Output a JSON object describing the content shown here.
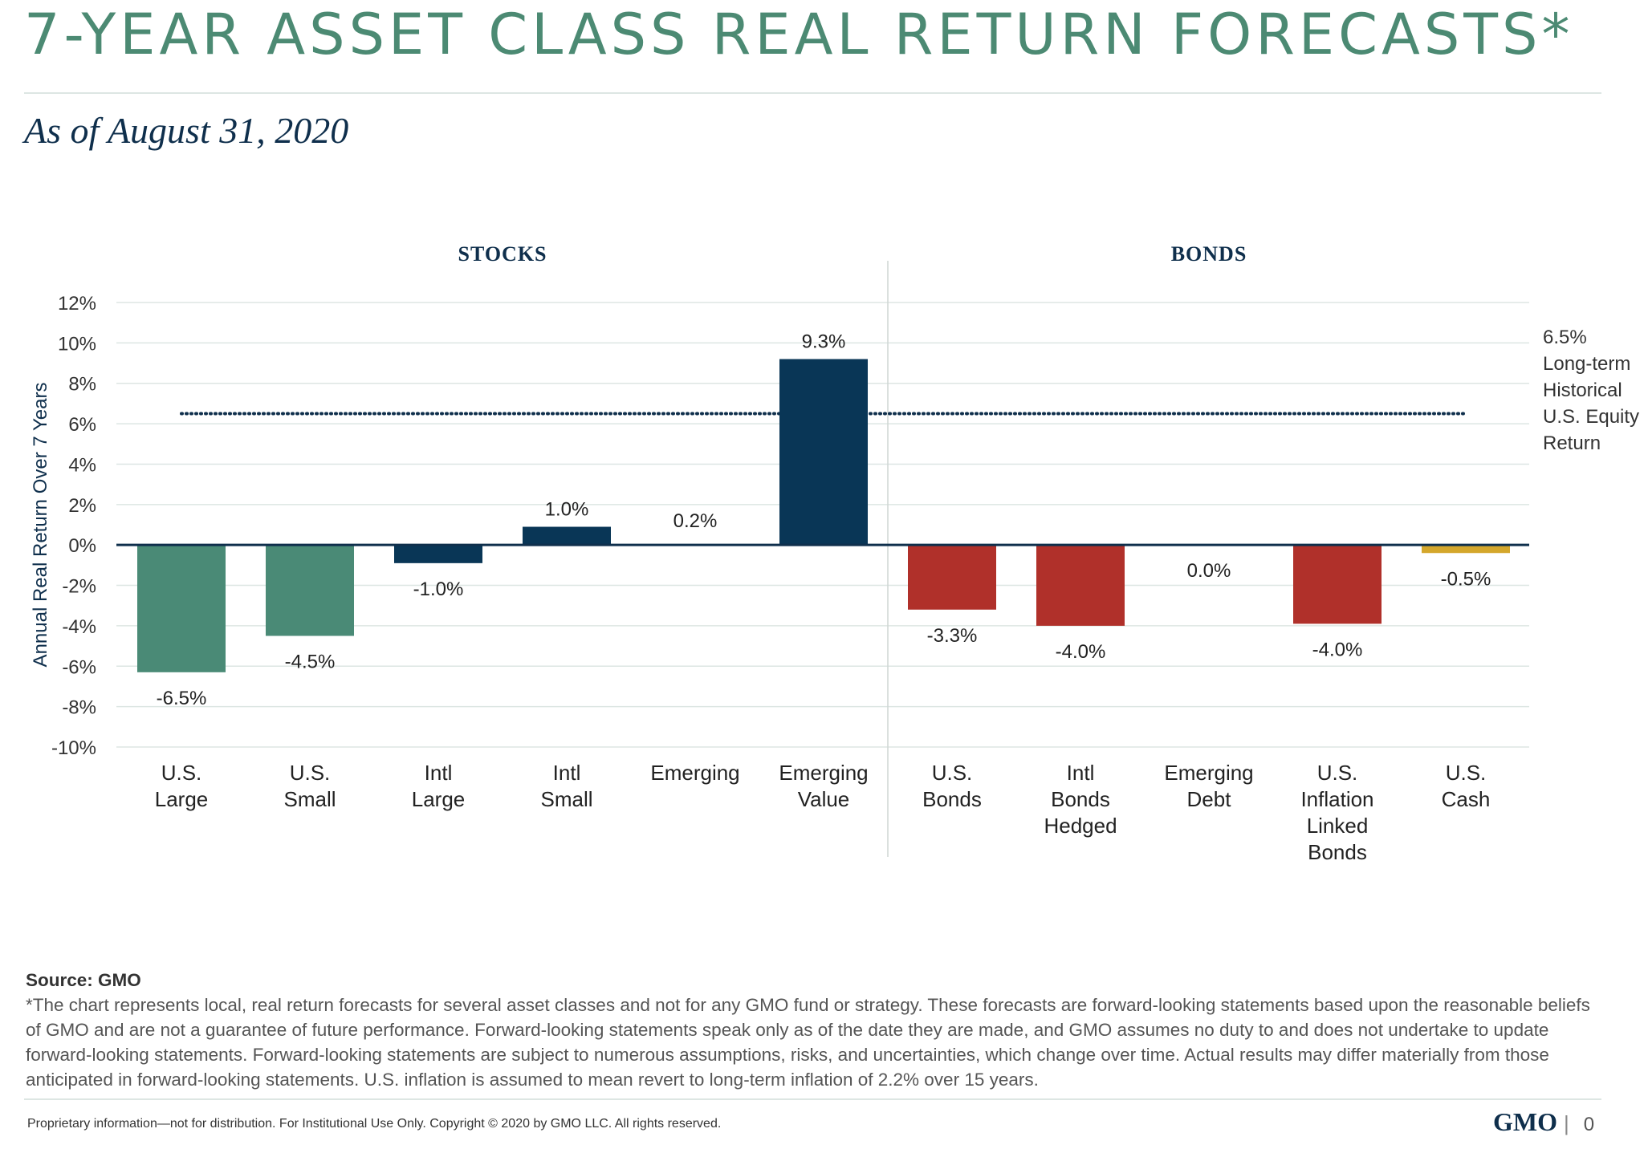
{
  "header": {
    "title": "7-YEAR ASSET CLASS REAL RETURN FORECASTS*",
    "subtitle": "As of August 31, 2020"
  },
  "colors": {
    "title": "#4c8a73",
    "navy": "#0f2f4c",
    "us_equity": "#4a8a76",
    "intl_equity": "#093656",
    "bond_red": "#b0302a",
    "cash_gold": "#d4a72c",
    "grid": "#dde6e3"
  },
  "chart_data": {
    "type": "bar",
    "ylabel": "Annual Real Return Over 7 Years",
    "ylim": [
      -10,
      12
    ],
    "yticks": [
      12,
      10,
      8,
      6,
      4,
      2,
      0,
      -2,
      -4,
      -6,
      -8,
      -10
    ],
    "ytick_labels": [
      "12%",
      "10%",
      "8%",
      "6%",
      "4%",
      "2%",
      "0%",
      "-2%",
      "-4%",
      "-6%",
      "-8%",
      "-10%"
    ],
    "groups": [
      {
        "label": "STOCKS",
        "start": 0,
        "end": 5
      },
      {
        "label": "BONDS",
        "start": 6,
        "end": 10
      }
    ],
    "categories": [
      [
        "U.S.",
        "Large"
      ],
      [
        "U.S.",
        "Small"
      ],
      [
        "Intl",
        "Large"
      ],
      [
        "Intl",
        "Small"
      ],
      [
        "Emerging"
      ],
      [
        "Emerging",
        "Value"
      ],
      [
        "U.S.",
        "Bonds"
      ],
      [
        "Intl",
        "Bonds",
        "Hedged"
      ],
      [
        "Emerging",
        "Debt"
      ],
      [
        "U.S.",
        "Inflation",
        "Linked",
        "Bonds"
      ],
      [
        "U.S.",
        "Cash"
      ]
    ],
    "values": [
      -6.5,
      -4.5,
      -1.0,
      1.0,
      0.2,
      9.3,
      -3.3,
      -4.0,
      0.0,
      -4.0,
      -0.5
    ],
    "bar_display": [
      -6.3,
      -4.5,
      -0.9,
      0.9,
      0.0,
      9.2,
      -3.2,
      -4.0,
      0.0,
      -3.9,
      -0.4
    ],
    "value_labels": [
      "-6.5%",
      "-4.5%",
      "-1.0%",
      "1.0%",
      "0.2%",
      "9.3%",
      "-3.3%",
      "-4.0%",
      "0.0%",
      "-4.0%",
      "-0.5%"
    ],
    "bar_colors": [
      "#4a8a76",
      "#4a8a76",
      "#093656",
      "#093656",
      "#093656",
      "#093656",
      "#b0302a",
      "#b0302a",
      "#b0302a",
      "#b0302a",
      "#d4a72c"
    ],
    "reference_line": {
      "value": 6.5,
      "label_lines": [
        "6.5%",
        "Long-term",
        "Historical",
        "U.S. Equity",
        "Return"
      ]
    }
  },
  "footnote": {
    "source": "Source: GMO",
    "text": "*The chart represents local, real return forecasts for several asset classes and not for any GMO fund or strategy. These forecasts are forward-looking statements based upon the reasonable beliefs of GMO and are not a guarantee of future performance. Forward-looking statements speak only as of the date they are made, and GMO assumes no duty to and does not undertake to update forward-looking statements. Forward-looking statements are subject to numerous assumptions, risks, and uncertainties, which change over time. Actual results may differ materially from those anticipated in forward-looking statements. U.S. inflation is assumed to mean revert to long-term inflation of 2.2% over 15 years."
  },
  "footer": {
    "disclaimer": "Proprietary information—not for distribution. For Institutional Use Only. Copyright © 2020 by GMO LLC. All rights reserved.",
    "logo": "GMO",
    "separator": "|",
    "page_number": "0"
  }
}
